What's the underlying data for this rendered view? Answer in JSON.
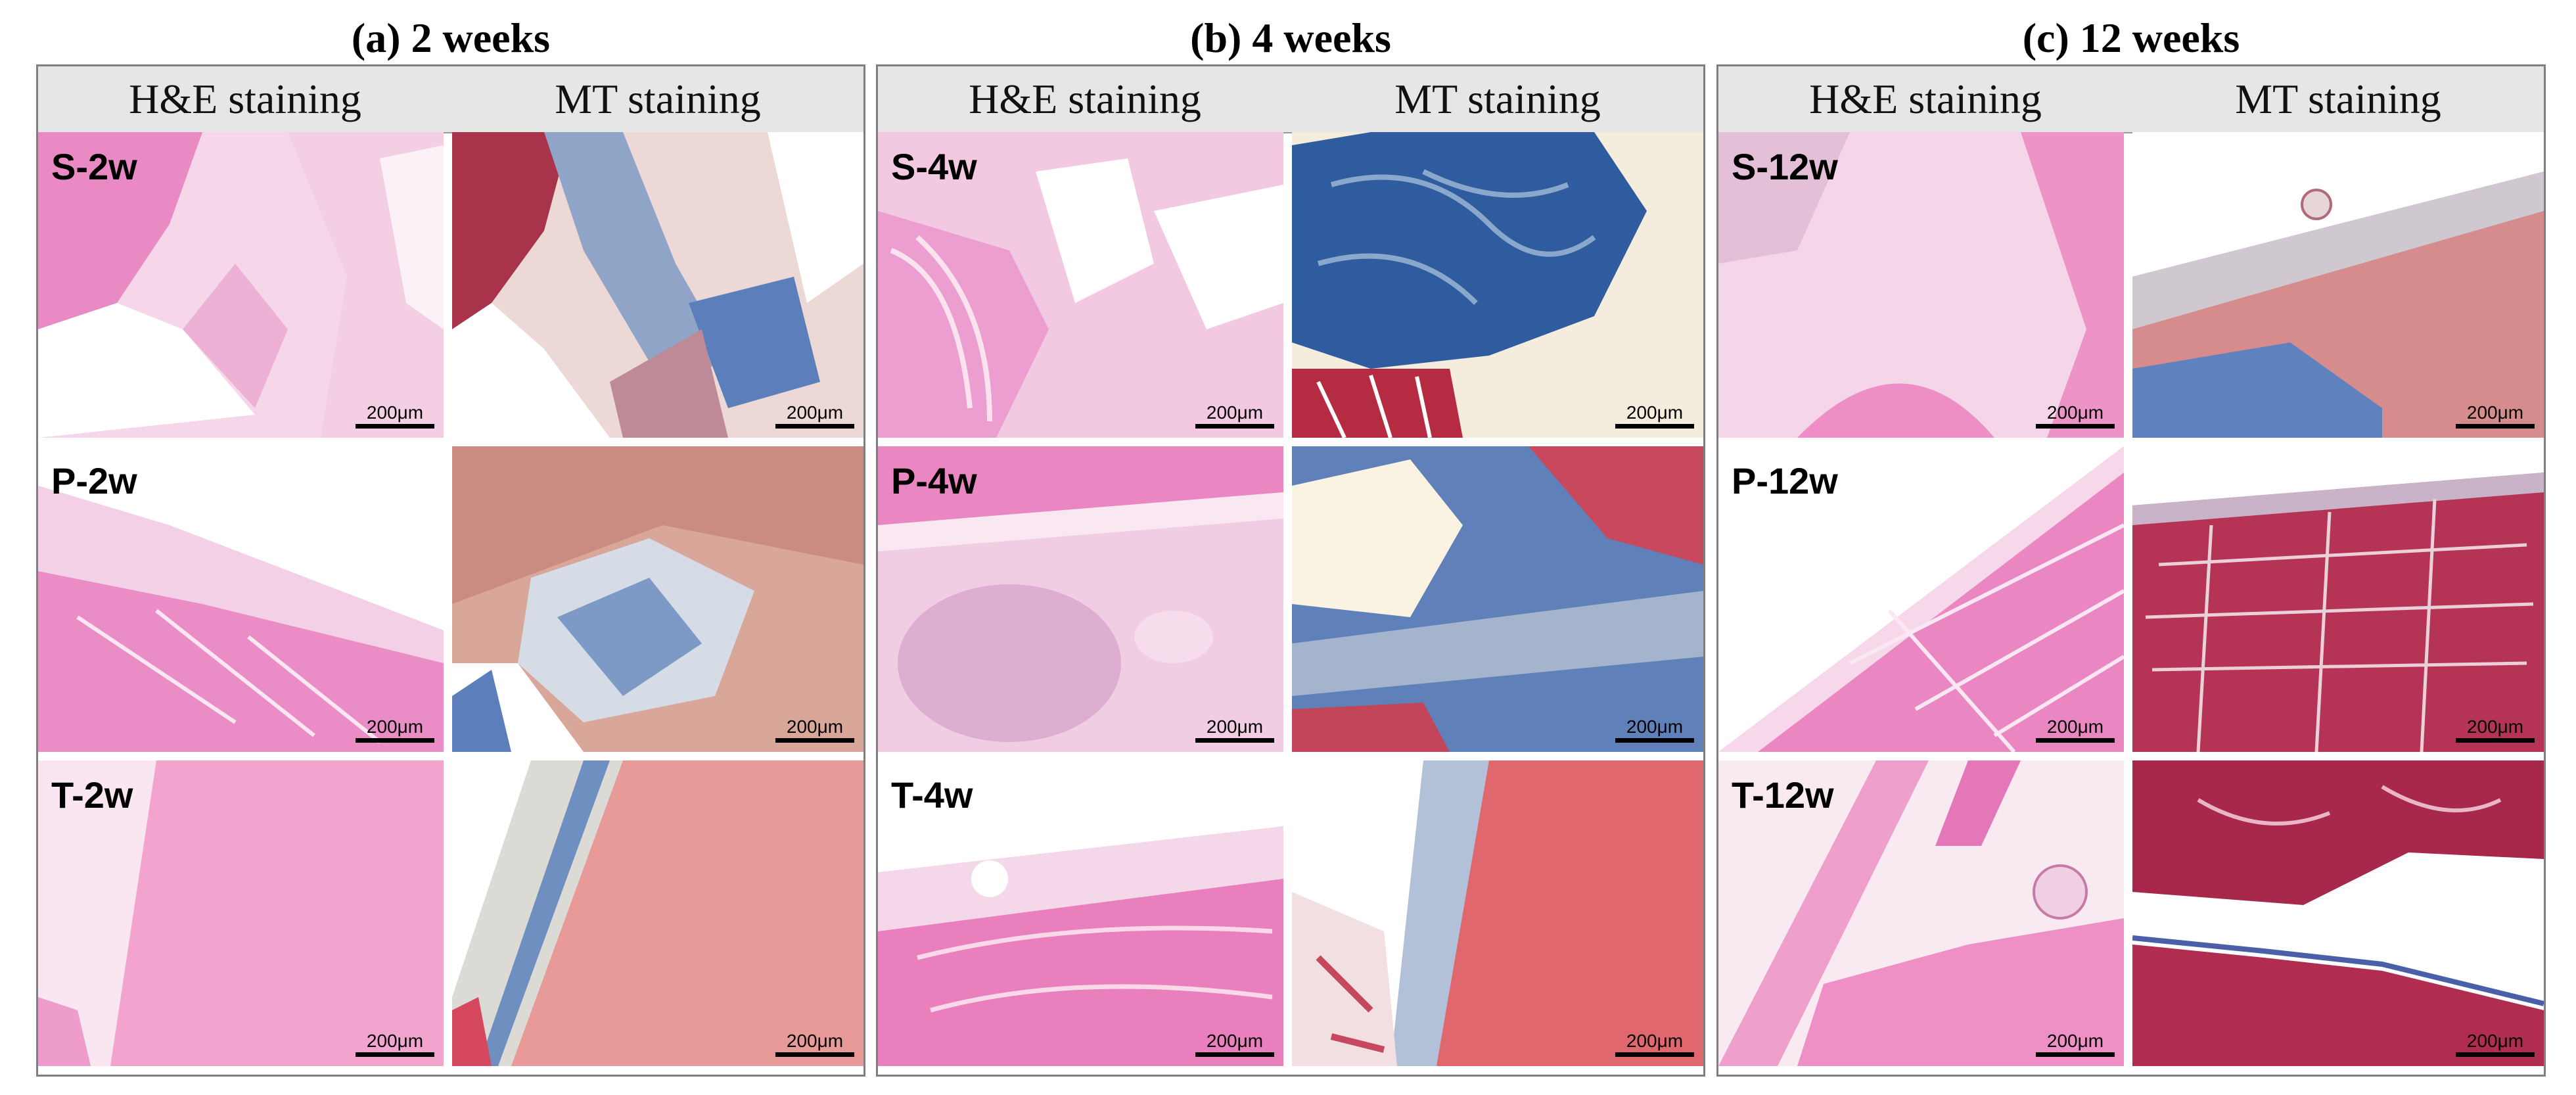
{
  "panels": [
    {
      "title": "(a) 2 weeks",
      "col_he": "H&E staining",
      "col_mt": "MT staining",
      "rows": [
        {
          "label": "S-2w",
          "scale_he": "200μm",
          "scale_mt": "200μm"
        },
        {
          "label": "P-2w",
          "scale_he": "200μm",
          "scale_mt": "200μm"
        },
        {
          "label": "T-2w",
          "scale_he": "200μm",
          "scale_mt": "200μm"
        }
      ]
    },
    {
      "title": "(b) 4 weeks",
      "col_he": "H&E staining",
      "col_mt": "MT staining",
      "rows": [
        {
          "label": "S-4w",
          "scale_he": "200μm",
          "scale_mt": "200μm"
        },
        {
          "label": "P-4w",
          "scale_he": "200μm",
          "scale_mt": "200μm"
        },
        {
          "label": "T-4w",
          "scale_he": "200μm",
          "scale_mt": "200μm"
        }
      ]
    },
    {
      "title": "(c) 12 weeks",
      "col_he": "H&E staining",
      "col_mt": "MT staining",
      "rows": [
        {
          "label": "S-12w",
          "scale_he": "200μm",
          "scale_mt": "200μm"
        },
        {
          "label": "P-12w",
          "scale_he": "200μm",
          "scale_mt": "200μm"
        },
        {
          "label": "T-12w",
          "scale_he": "200μm",
          "scale_mt": "200μm"
        }
      ]
    }
  ],
  "colors": {
    "he_base": "#f2c4dd",
    "he_muscle": "#e986c0",
    "he_tissue": "#f7dcec",
    "mt_muscle": "#c8485e",
    "mt_collagen": "#4a74b4",
    "mt_pale": "#ead8d0"
  }
}
